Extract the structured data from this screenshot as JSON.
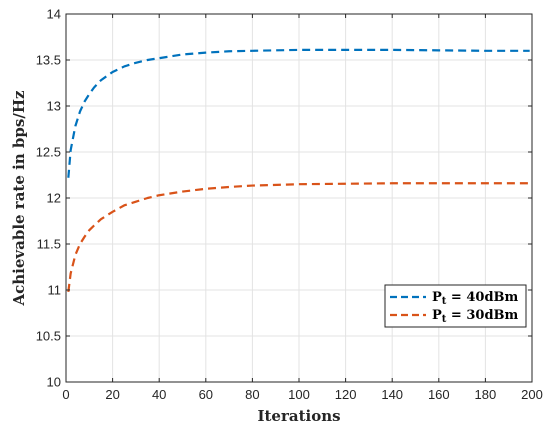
{
  "chart_data": {
    "type": "line",
    "title": "",
    "xlabel": "Iterations",
    "ylabel": "Achievable rate in bps/Hz",
    "xlim": [
      0,
      200
    ],
    "ylim": [
      10,
      14
    ],
    "xticks": [
      0,
      20,
      40,
      60,
      80,
      100,
      120,
      140,
      160,
      180,
      200
    ],
    "yticks": [
      10,
      10.5,
      11,
      11.5,
      12,
      12.5,
      13,
      13.5,
      14
    ],
    "xtick_labels": [
      "0",
      "20",
      "40",
      "60",
      "80",
      "100",
      "120",
      "140",
      "160",
      "180",
      "200"
    ],
    "ytick_labels": [
      "10",
      "10.5",
      "11",
      "11.5",
      "12",
      "12.5",
      "13",
      "13.5",
      "14"
    ],
    "grid": true,
    "legend_position": "lower-right",
    "series": [
      {
        "name_main": "P",
        "name_sub": "t",
        "name_rest": " = 40dBm",
        "color": "#0072BD",
        "style": "dashed",
        "x": [
          1,
          2,
          4,
          6,
          8,
          10,
          12,
          15,
          20,
          25,
          30,
          35,
          40,
          50,
          60,
          70,
          80,
          100,
          120,
          140,
          160,
          180,
          199
        ],
        "y": [
          12.22,
          12.52,
          12.78,
          12.94,
          13.05,
          13.13,
          13.2,
          13.28,
          13.37,
          13.43,
          13.47,
          13.5,
          13.52,
          13.56,
          13.58,
          13.595,
          13.6,
          13.61,
          13.61,
          13.61,
          13.605,
          13.6,
          13.6
        ]
      },
      {
        "name_main": "P",
        "name_sub": "t",
        "name_rest": " = 30dBm",
        "color": "#D95319",
        "style": "dashed",
        "x": [
          1,
          2,
          4,
          6,
          8,
          10,
          12,
          15,
          20,
          25,
          30,
          35,
          40,
          50,
          60,
          70,
          80,
          100,
          120,
          140,
          160,
          180,
          199
        ],
        "y": [
          10.98,
          11.18,
          11.38,
          11.5,
          11.58,
          11.65,
          11.7,
          11.77,
          11.85,
          11.92,
          11.96,
          12.0,
          12.03,
          12.07,
          12.1,
          12.12,
          12.135,
          12.15,
          12.155,
          12.16,
          12.16,
          12.16,
          12.16
        ]
      }
    ]
  }
}
